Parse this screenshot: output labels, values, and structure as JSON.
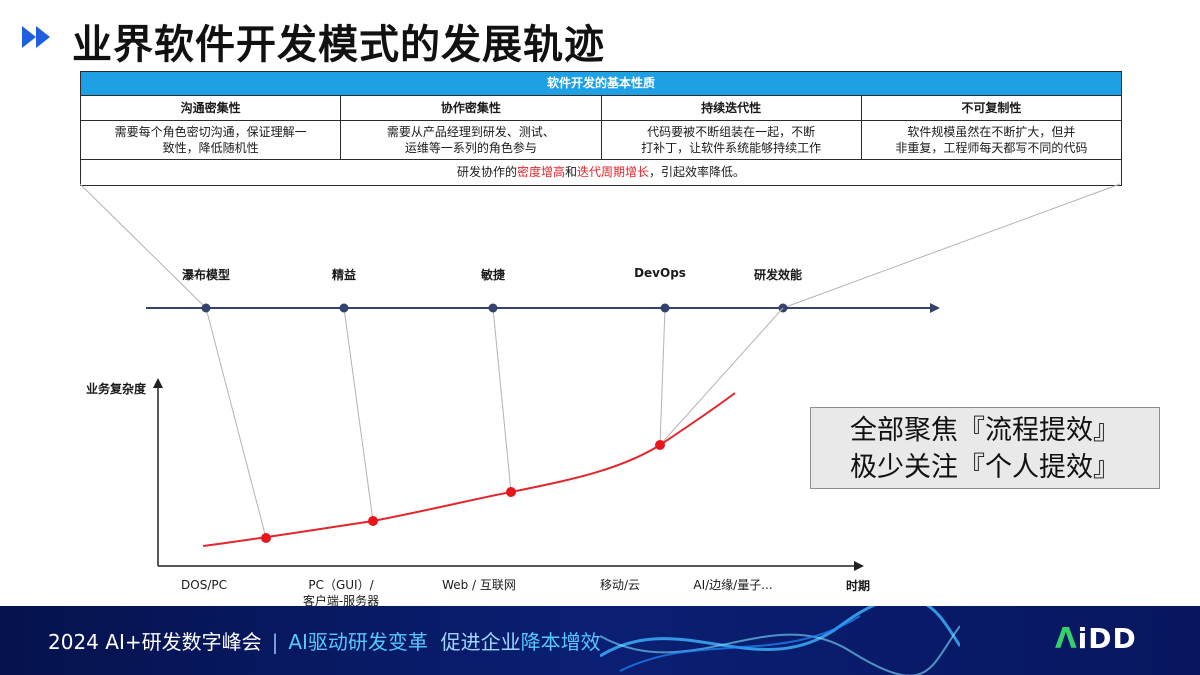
{
  "title": "业界软件开发模式的发展轨迹",
  "table": {
    "header": "软件开发的基本性质",
    "columns": [
      {
        "head": "沟通密集性",
        "desc_line1": "需要每个角色密切沟通，保证理解一",
        "desc_line2": "致性，降低随机性"
      },
      {
        "head": "协作密集性",
        "desc_line1": "需要从产品经理到研发、测试、",
        "desc_line2": "运维等一系列的角色参与"
      },
      {
        "head": "持续迭代性",
        "desc_line1": "代码要被不断组装在一起，不断",
        "desc_line2": "打补丁，让软件系统能够持续工作"
      },
      {
        "head": "不可复制性",
        "desc_line1": "软件规模虽然在不断扩大，但并",
        "desc_line2": "非重复，工程师每天都写不同的代码"
      }
    ],
    "footer": {
      "part1": "研发协作的",
      "hl1": "密度增高",
      "part2": "和",
      "hl2": "迭代周期增长",
      "part3": "，引起效率降低。"
    }
  },
  "timeline": {
    "labels": [
      "瀑布模型",
      "精益",
      "敏捷",
      "DevOps",
      "研发效能"
    ]
  },
  "chart_data": {
    "type": "line",
    "ylabel": "业务复杂度",
    "xlabel": "时期",
    "x_categories": [
      "DOS/PC",
      "PC（GUI）/ 客户端-服务器",
      "Web / 互联网",
      "移动/云",
      "AI/边缘/量子…"
    ],
    "points": [
      {
        "model": "瀑布模型"
      },
      {
        "model": "精益"
      },
      {
        "model": "敏捷"
      },
      {
        "model": "DevOps"
      }
    ],
    "curve_color": "#e3262b",
    "axis_color": "#34436b"
  },
  "x_axis": {
    "label_1": "DOS/PC",
    "label_2_line1": "PC（GUI）/",
    "label_2_line2": "客户端-服务器",
    "label_3": "Web / 互联网",
    "label_4": "移动/云",
    "label_5": "AI/边缘/量子..."
  },
  "callout": {
    "line1": "全部聚焦『流程提效』",
    "line2": "极少关注『个人提效』"
  },
  "footer": {
    "event": "2024 AI+研发数字峰会",
    "slogan_a": "AI驱动研发变革",
    "slogan_b": "促进企业",
    "slogan_c": "降本增效",
    "logo_a": "Λ",
    "logo_rest": "iDD"
  },
  "colors": {
    "accent_blue": "#1ea0e4",
    "title_arrow": "#1f5fe0",
    "highlight_red": "#e3262b",
    "footer_bg": "#0a1f74"
  }
}
